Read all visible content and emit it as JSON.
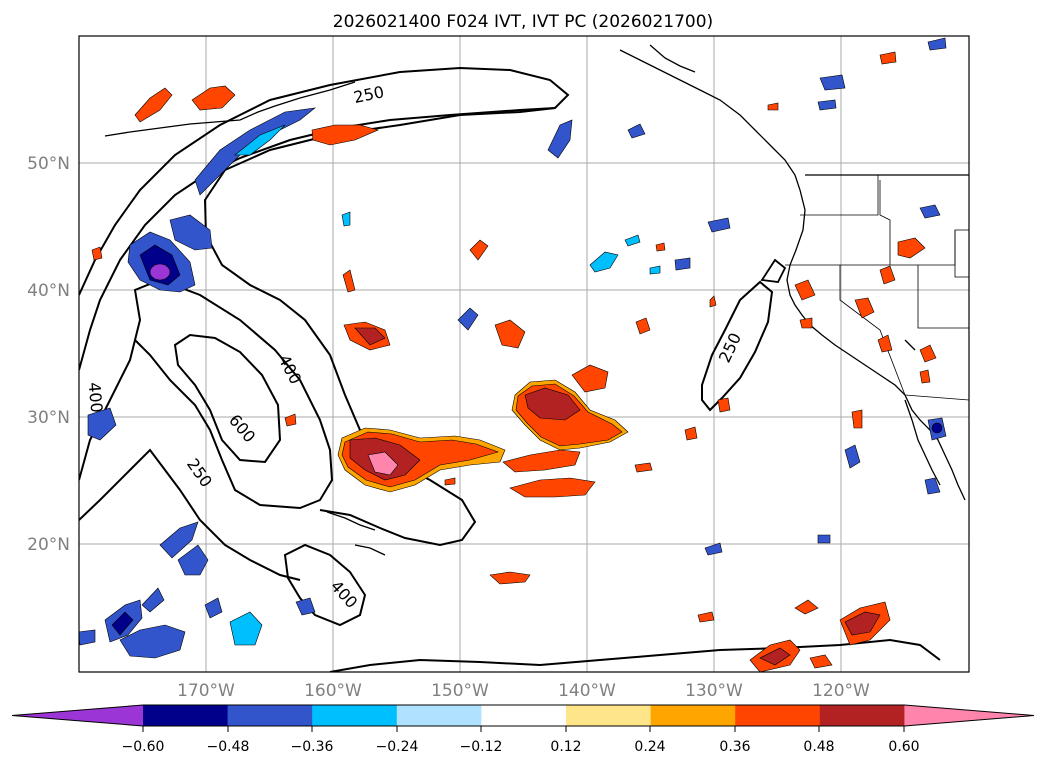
{
  "title": "2026021400 F024 IVT, IVT PC (2026021700)",
  "map": {
    "lat_labels": [
      "50°N",
      "40°N",
      "30°N",
      "20°N"
    ],
    "lon_labels": [
      "170°W",
      "160°W",
      "150°W",
      "140°W",
      "130°W",
      "120°W"
    ],
    "contour_labels": [
      "250",
      "400",
      "600",
      "400",
      "250",
      "250",
      "400"
    ],
    "axis_label_color": "#808080",
    "gridline_color": "#a9a9a9"
  },
  "colorbar": {
    "colors": [
      "#9b35d6",
      "#00008b",
      "#3355cc",
      "#00bfff",
      "#b0e2ff",
      "#ffffff",
      "#ffe58a",
      "#ffa500",
      "#ff4500",
      "#b22222",
      "#ff85ad"
    ],
    "tick_labels": [
      "−0.60",
      "−0.48",
      "−0.36",
      "−0.24",
      "−0.12",
      "0.12",
      "0.24",
      "0.36",
      "0.48",
      "0.60"
    ]
  }
}
